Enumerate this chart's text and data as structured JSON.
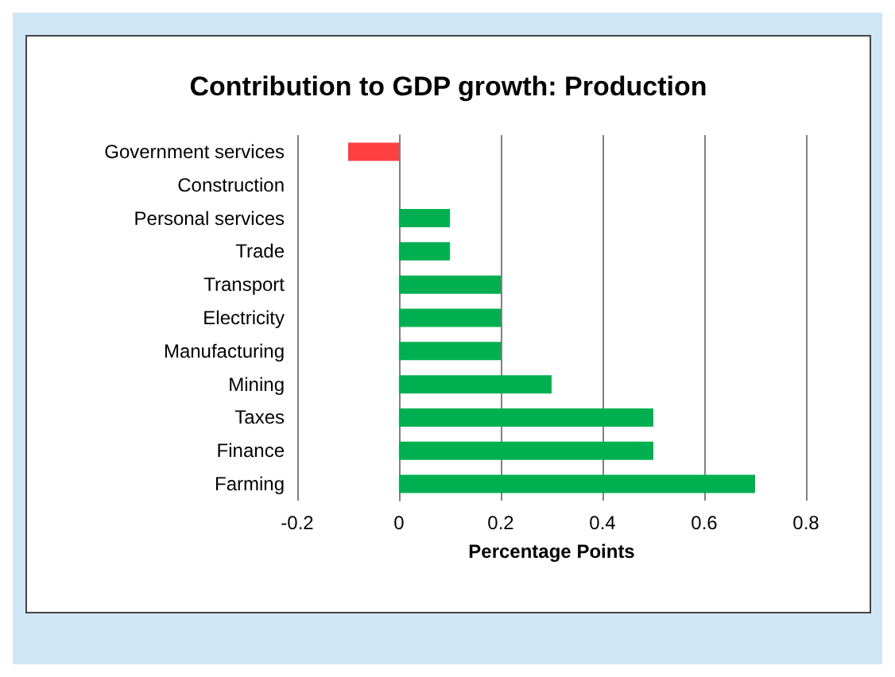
{
  "chart_data": {
    "type": "bar",
    "orientation": "horizontal",
    "title": "Contribution to GDP growth: Production",
    "xlabel": "Percentage Points",
    "categories": [
      "Government services",
      "Construction",
      "Personal services",
      "Trade",
      "Transport",
      "Electricity",
      "Manufacturing",
      "Mining",
      "Taxes",
      "Finance",
      "Farming"
    ],
    "values": [
      -0.1,
      0,
      0.1,
      0.1,
      0.2,
      0.2,
      0.2,
      0.3,
      0.5,
      0.5,
      0.7
    ],
    "colors": [
      "#ff4040",
      "#00b050",
      "#00b050",
      "#00b050",
      "#00b050",
      "#00b050",
      "#00b050",
      "#00b050",
      "#00b050",
      "#00b050",
      "#00b050"
    ],
    "xlim": [
      -0.2,
      0.8
    ],
    "xticks": [
      -0.2,
      0,
      0.2,
      0.4,
      0.6,
      0.8
    ],
    "grid": "x"
  }
}
